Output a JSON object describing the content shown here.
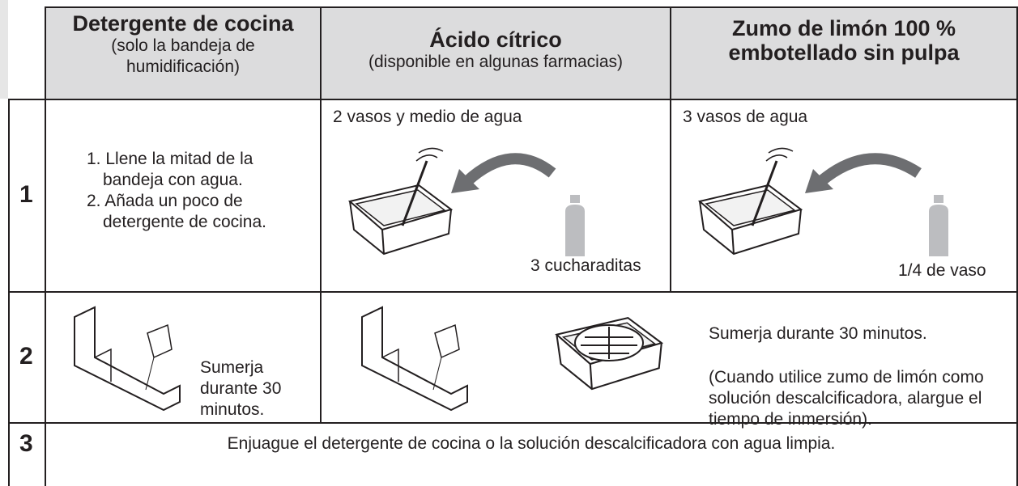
{
  "header": {
    "columns": [
      {
        "title": "Detergente de cocina",
        "subtitle": "(solo la bandeja de humidificación)"
      },
      {
        "title": "Ácido cítrico",
        "subtitle": "(disponible en algunas farmacias)"
      },
      {
        "title": "Zumo de limón 100 % embotellado sin pulpa"
      }
    ]
  },
  "rows": [
    {
      "number": "1",
      "steps": [
        "1. Llene la mitad de la bandeja con agua.",
        "2. Añada un poco de detergente de cocina."
      ],
      "citric_water": "2 vasos y medio de agua",
      "citric_amount": "3 cucharaditas",
      "lemon_water": "3 vasos de agua",
      "lemon_amount": "1/4 de vaso"
    },
    {
      "number": "2",
      "detergent": "Sumerja durante 30 minutos.",
      "other": "Sumerja durante 30 minutos.",
      "note": "(Cuando utilice zumo de limón como solución descalcificadora, alargue el tiempo de inmersión)."
    },
    {
      "number": "3",
      "text": "Enjuague el detergente de cocina o la solución descalcificadora con agua limpia."
    }
  ]
}
